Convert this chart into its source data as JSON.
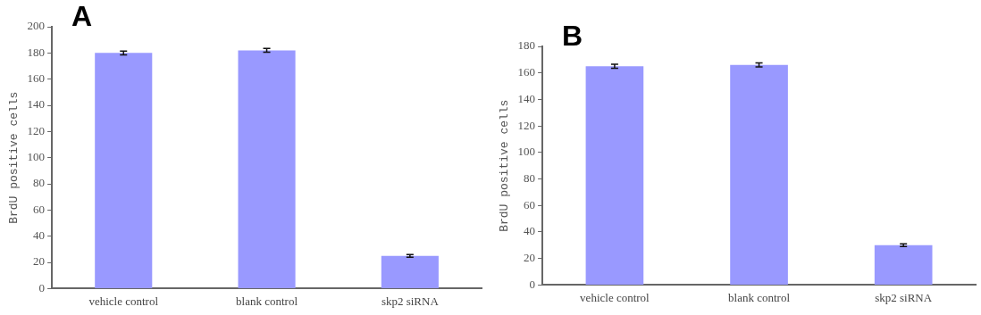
{
  "chart_data": [
    {
      "type": "bar",
      "title": "A",
      "ylabel": "BrdU positive cells",
      "categories": [
        "vehicle control",
        "blank control",
        "skp2 siRNA"
      ],
      "values": [
        180,
        182,
        25
      ],
      "errors": [
        1.5,
        1.5,
        1
      ],
      "color": "#9999ff",
      "ylim": [
        0,
        200
      ],
      "yticks": [
        0,
        20,
        40,
        60,
        80,
        100,
        120,
        140,
        160,
        180,
        200
      ],
      "grid": false,
      "legend": false
    },
    {
      "type": "bar",
      "title": "B",
      "ylabel": "BrdU positive cells",
      "categories": [
        "vehicle control",
        "blank control",
        "skp2 siRNA"
      ],
      "values": [
        165,
        166,
        30
      ],
      "errors": [
        1.5,
        1.5,
        1
      ],
      "color": "#9999ff",
      "ylim": [
        0,
        180
      ],
      "yticks": [
        0,
        20,
        40,
        60,
        80,
        100,
        120,
        140,
        160,
        180
      ],
      "grid": false,
      "legend": false
    }
  ]
}
